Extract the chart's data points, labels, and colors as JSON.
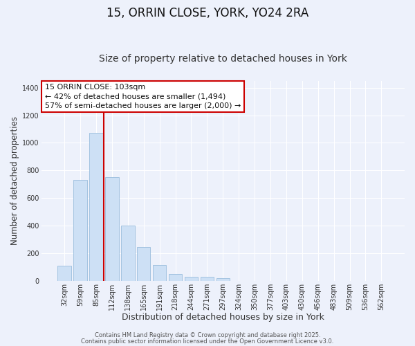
{
  "title": "15, ORRIN CLOSE, YORK, YO24 2RA",
  "subtitle": "Size of property relative to detached houses in York",
  "xlabel": "Distribution of detached houses by size in York",
  "ylabel": "Number of detached properties",
  "categories": [
    "32sqm",
    "59sqm",
    "85sqm",
    "112sqm",
    "138sqm",
    "165sqm",
    "191sqm",
    "218sqm",
    "244sqm",
    "271sqm",
    "297sqm",
    "324sqm",
    "350sqm",
    "377sqm",
    "403sqm",
    "430sqm",
    "456sqm",
    "483sqm",
    "509sqm",
    "536sqm",
    "562sqm"
  ],
  "values": [
    110,
    730,
    1070,
    750,
    400,
    243,
    113,
    50,
    27,
    27,
    20,
    0,
    0,
    0,
    0,
    0,
    0,
    0,
    0,
    0,
    0
  ],
  "bar_color": "#cde0f5",
  "bar_edge_color": "#9bbedd",
  "vline_x_index": 2.5,
  "vline_color": "#cc0000",
  "annotation_line1": "15 ORRIN CLOSE: 103sqm",
  "annotation_line2": "← 42% of detached houses are smaller (1,494)",
  "annotation_line3": "57% of semi-detached houses are larger (2,000) →",
  "annotation_box_color": "#ffffff",
  "annotation_box_edge": "#cc0000",
  "ylim": [
    0,
    1450
  ],
  "yticks": [
    0,
    200,
    400,
    600,
    800,
    1000,
    1200,
    1400
  ],
  "background_color": "#edf1fb",
  "grid_color": "#ffffff",
  "footer1": "Contains HM Land Registry data © Crown copyright and database right 2025.",
  "footer2": "Contains public sector information licensed under the Open Government Licence v3.0.",
  "title_fontsize": 12,
  "subtitle_fontsize": 10,
  "xlabel_fontsize": 9,
  "ylabel_fontsize": 8.5,
  "tick_fontsize": 7,
  "annotation_fontsize": 8,
  "footer_fontsize": 6
}
